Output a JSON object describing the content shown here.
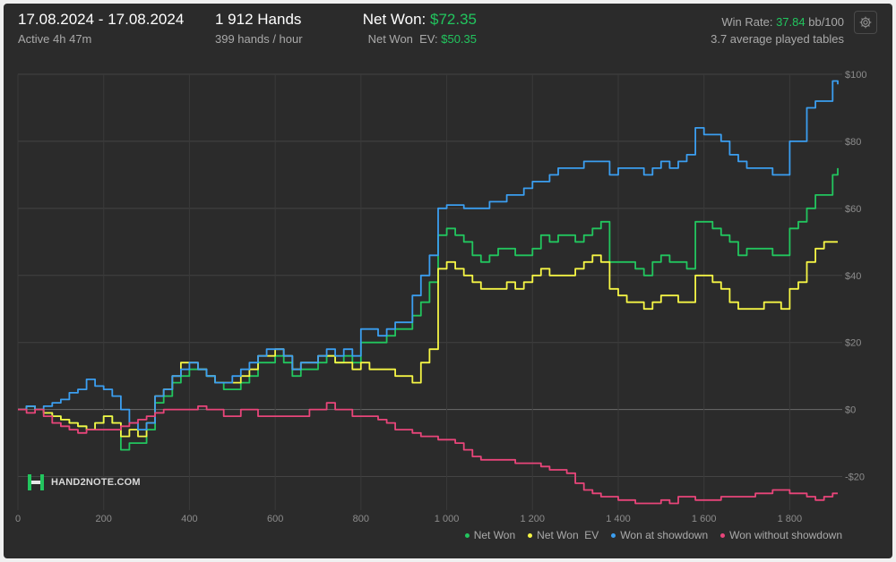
{
  "header": {
    "date_range": "17.08.2024 - 17.08.2024",
    "active": "Active 4h 47m",
    "hands": "1 912 Hands",
    "hands_rate": "399 hands / hour",
    "net_won_label": "Net Won: ",
    "net_won_value": "$72.35",
    "net_won_ev_label": "Net Won  EV: ",
    "net_won_ev_value": "$50.35",
    "win_rate_label": "Win Rate: ",
    "win_rate_value": "37.84",
    "win_rate_unit": " bb/100",
    "tables": "3.7 average played tables"
  },
  "logo_text": "HAND2NOTE.COM",
  "icons": {
    "settings": "gear-icon",
    "logo": "hand2note-logo-icon"
  },
  "colors": {
    "net_won": "#22c55e",
    "net_won_ev": "#f5f545",
    "showdown": "#3b9ef0",
    "non_showdown": "#e8457a",
    "background": "#2b2b2b"
  },
  "chart_data": {
    "type": "line",
    "xlim": [
      0,
      1912
    ],
    "ylim": [
      -30,
      100
    ],
    "x_ticks": [
      0,
      200,
      400,
      600,
      800,
      1000,
      1200,
      1400,
      1600,
      1800
    ],
    "x_tick_labels": [
      "0",
      "200",
      "400",
      "600",
      "800",
      "1 000",
      "1 200",
      "1 400",
      "1 600",
      "1 800"
    ],
    "y_ticks": [
      100,
      80,
      60,
      40,
      20,
      0,
      -20
    ],
    "y_tick_labels": [
      "$100",
      "$80",
      "$60",
      "$40",
      "$20",
      "$0",
      "-$20"
    ],
    "grid": true,
    "legend_position": "bottom-right",
    "series": [
      {
        "name": "Net Won",
        "color": "#22c55e",
        "x": [
          0,
          20,
          40,
          60,
          80,
          100,
          120,
          140,
          160,
          180,
          200,
          220,
          240,
          260,
          280,
          300,
          320,
          340,
          360,
          380,
          400,
          420,
          440,
          460,
          480,
          500,
          520,
          540,
          560,
          580,
          600,
          620,
          640,
          660,
          680,
          700,
          720,
          740,
          760,
          780,
          800,
          820,
          840,
          860,
          880,
          900,
          920,
          940,
          960,
          980,
          1000,
          1020,
          1040,
          1060,
          1080,
          1100,
          1120,
          1140,
          1160,
          1180,
          1200,
          1220,
          1240,
          1260,
          1280,
          1300,
          1320,
          1340,
          1360,
          1380,
          1400,
          1420,
          1440,
          1460,
          1480,
          1500,
          1520,
          1540,
          1560,
          1580,
          1600,
          1620,
          1640,
          1660,
          1680,
          1700,
          1720,
          1740,
          1760,
          1780,
          1800,
          1820,
          1840,
          1860,
          1880,
          1900,
          1912
        ],
        "values": [
          0,
          1,
          0,
          -1,
          -2,
          -3,
          -4,
          -5,
          -6,
          -4,
          -2,
          -4,
          -12,
          -10,
          -10,
          -6,
          2,
          4,
          8,
          10,
          12,
          12,
          10,
          8,
          6,
          6,
          8,
          10,
          14,
          14,
          16,
          14,
          10,
          12,
          12,
          14,
          16,
          14,
          16,
          14,
          20,
          20,
          20,
          22,
          24,
          24,
          28,
          32,
          38,
          52,
          54,
          52,
          50,
          46,
          44,
          46,
          48,
          48,
          46,
          46,
          48,
          52,
          50,
          52,
          52,
          50,
          52,
          54,
          56,
          44,
          44,
          44,
          42,
          40,
          44,
          46,
          44,
          44,
          42,
          56,
          56,
          54,
          52,
          50,
          46,
          48,
          48,
          48,
          46,
          46,
          54,
          56,
          60,
          64,
          64,
          70,
          72
        ]
      },
      {
        "name": "Net Won  EV",
        "color": "#f5f545",
        "x": [
          0,
          20,
          40,
          60,
          80,
          100,
          120,
          140,
          160,
          180,
          200,
          220,
          240,
          260,
          280,
          300,
          320,
          340,
          360,
          380,
          400,
          420,
          440,
          460,
          480,
          500,
          520,
          540,
          560,
          580,
          600,
          620,
          640,
          660,
          680,
          700,
          720,
          740,
          760,
          780,
          800,
          820,
          840,
          860,
          880,
          900,
          920,
          940,
          960,
          980,
          1000,
          1020,
          1040,
          1060,
          1080,
          1100,
          1120,
          1140,
          1160,
          1180,
          1200,
          1220,
          1240,
          1260,
          1280,
          1300,
          1320,
          1340,
          1360,
          1380,
          1400,
          1420,
          1440,
          1460,
          1480,
          1500,
          1520,
          1540,
          1560,
          1580,
          1600,
          1620,
          1640,
          1660,
          1680,
          1700,
          1720,
          1740,
          1760,
          1780,
          1800,
          1820,
          1840,
          1860,
          1880,
          1900,
          1912
        ],
        "values": [
          0,
          1,
          0,
          -1,
          -2,
          -3,
          -4,
          -5,
          -6,
          -4,
          -2,
          -4,
          -8,
          -6,
          -8,
          -4,
          4,
          6,
          10,
          14,
          14,
          12,
          10,
          8,
          8,
          8,
          10,
          12,
          16,
          16,
          18,
          16,
          12,
          14,
          14,
          16,
          16,
          14,
          14,
          12,
          14,
          12,
          12,
          12,
          10,
          10,
          8,
          14,
          18,
          42,
          44,
          42,
          40,
          38,
          36,
          36,
          36,
          38,
          36,
          38,
          40,
          42,
          40,
          40,
          40,
          42,
          44,
          46,
          44,
          36,
          34,
          32,
          32,
          30,
          32,
          34,
          34,
          32,
          32,
          40,
          40,
          38,
          36,
          32,
          30,
          30,
          30,
          32,
          32,
          30,
          36,
          38,
          44,
          48,
          50,
          50,
          50
        ]
      },
      {
        "name": "Won at showdown",
        "color": "#3b9ef0",
        "x": [
          0,
          20,
          40,
          60,
          80,
          100,
          120,
          140,
          160,
          180,
          200,
          220,
          240,
          260,
          280,
          300,
          320,
          340,
          360,
          380,
          400,
          420,
          440,
          460,
          480,
          500,
          520,
          540,
          560,
          580,
          600,
          620,
          640,
          660,
          680,
          700,
          720,
          740,
          760,
          780,
          800,
          820,
          840,
          860,
          880,
          900,
          920,
          940,
          960,
          980,
          1000,
          1020,
          1040,
          1060,
          1080,
          1100,
          1120,
          1140,
          1160,
          1180,
          1200,
          1220,
          1240,
          1260,
          1280,
          1300,
          1320,
          1340,
          1360,
          1380,
          1400,
          1420,
          1440,
          1460,
          1480,
          1500,
          1520,
          1540,
          1560,
          1580,
          1600,
          1620,
          1640,
          1660,
          1680,
          1700,
          1720,
          1740,
          1760,
          1780,
          1800,
          1820,
          1840,
          1860,
          1880,
          1900,
          1912
        ],
        "values": [
          0,
          1,
          0,
          1,
          2,
          3,
          5,
          6,
          9,
          7,
          6,
          4,
          0,
          -4,
          -6,
          -4,
          4,
          6,
          10,
          12,
          14,
          12,
          10,
          8,
          8,
          10,
          12,
          14,
          16,
          18,
          18,
          16,
          12,
          14,
          14,
          16,
          18,
          16,
          18,
          16,
          24,
          24,
          22,
          24,
          26,
          26,
          34,
          40,
          46,
          60,
          61,
          61,
          60,
          60,
          60,
          62,
          62,
          64,
          64,
          66,
          68,
          68,
          70,
          72,
          72,
          72,
          74,
          74,
          74,
          70,
          72,
          72,
          72,
          70,
          72,
          74,
          72,
          74,
          76,
          84,
          82,
          82,
          80,
          76,
          74,
          72,
          72,
          72,
          70,
          70,
          80,
          80,
          90,
          92,
          92,
          98,
          97
        ]
      },
      {
        "name": "Won without showdown",
        "color": "#e8457a",
        "x": [
          0,
          20,
          40,
          60,
          80,
          100,
          120,
          140,
          160,
          180,
          200,
          220,
          240,
          260,
          280,
          300,
          320,
          340,
          360,
          380,
          400,
          420,
          440,
          460,
          480,
          500,
          520,
          540,
          560,
          580,
          600,
          620,
          640,
          660,
          680,
          700,
          720,
          740,
          760,
          780,
          800,
          820,
          840,
          860,
          880,
          900,
          920,
          940,
          960,
          980,
          1000,
          1020,
          1040,
          1060,
          1080,
          1100,
          1120,
          1140,
          1160,
          1180,
          1200,
          1220,
          1240,
          1260,
          1280,
          1300,
          1320,
          1340,
          1360,
          1380,
          1400,
          1420,
          1440,
          1460,
          1480,
          1500,
          1520,
          1540,
          1560,
          1580,
          1600,
          1620,
          1640,
          1660,
          1680,
          1700,
          1720,
          1740,
          1760,
          1780,
          1800,
          1820,
          1840,
          1860,
          1880,
          1900,
          1912
        ],
        "values": [
          0,
          -1,
          0,
          -2,
          -4,
          -5,
          -6,
          -7,
          -6,
          -6,
          -6,
          -6,
          -5,
          -4,
          -3,
          -2,
          -1,
          0,
          0,
          0,
          0,
          1,
          0,
          0,
          -2,
          -2,
          0,
          0,
          -2,
          -2,
          -2,
          -2,
          -2,
          -2,
          0,
          0,
          2,
          0,
          0,
          -2,
          -2,
          -2,
          -3,
          -4,
          -6,
          -6,
          -7,
          -8,
          -8,
          -9,
          -9,
          -10,
          -12,
          -14,
          -15,
          -15,
          -15,
          -15,
          -16,
          -16,
          -16,
          -17,
          -18,
          -18,
          -19,
          -22,
          -24,
          -25,
          -26,
          -26,
          -27,
          -27,
          -28,
          -28,
          -28,
          -27,
          -28,
          -26,
          -26,
          -27,
          -27,
          -27,
          -26,
          -26,
          -26,
          -26,
          -25,
          -25,
          -24,
          -24,
          -25,
          -25,
          -26,
          -27,
          -26,
          -25,
          -25
        ]
      }
    ]
  }
}
